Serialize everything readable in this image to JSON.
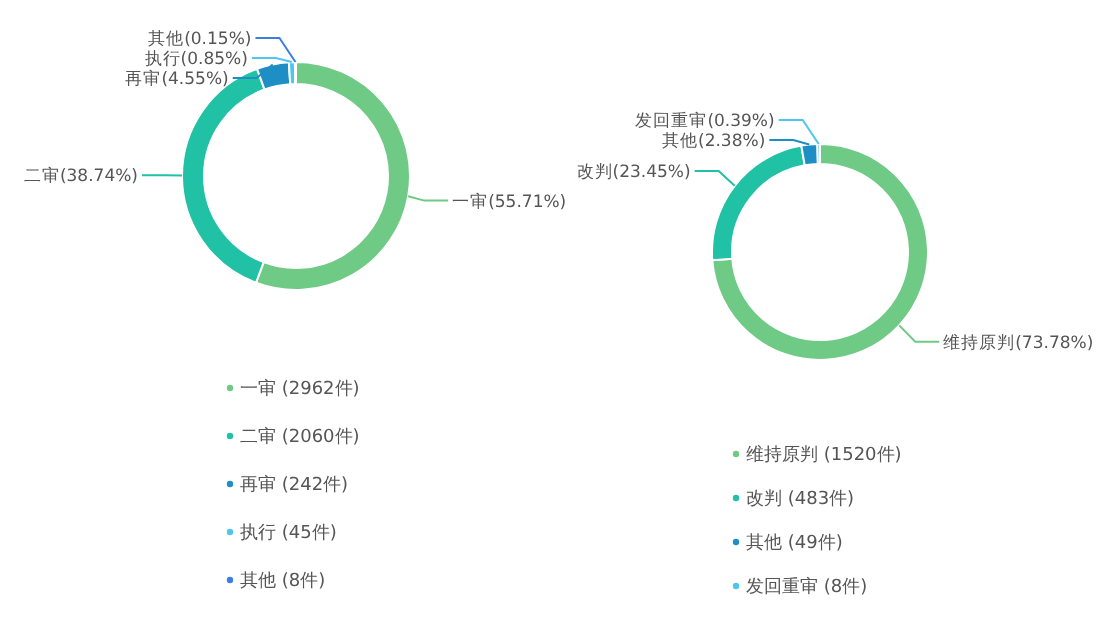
{
  "chart_data": [
    {
      "type": "donut",
      "categories": [
        "一审",
        "二审",
        "再审",
        "执行",
        "其他"
      ],
      "values": [
        55.71,
        38.74,
        4.55,
        0.85,
        0.15
      ],
      "colors": [
        "#6fca86",
        "#20c1a4",
        "#1e8fc4",
        "#4fc6ee",
        "#3b7fdd"
      ],
      "value_labels": [
        "(55.71%)",
        "(38.74%)",
        "(4.55%)",
        "(0.85%)",
        "(0.15%)"
      ],
      "annotations": [
        "(2962件)",
        "(2060件)",
        "(242件)",
        "(45件)",
        "(8件)"
      ]
    },
    {
      "type": "donut",
      "categories": [
        "维持原判",
        "改判",
        "其他",
        "发回重审"
      ],
      "values": [
        73.78,
        23.45,
        2.38,
        0.39
      ],
      "colors": [
        "#6fca86",
        "#20c1a4",
        "#1e8fc4",
        "#4fc6ee"
      ],
      "value_labels": [
        "(73.78%)",
        "(23.45%)",
        "(2.38%)",
        "(0.39%)"
      ],
      "annotations": [
        "(1520件)",
        "(483件)",
        "(49件)",
        "(8件)"
      ]
    }
  ]
}
